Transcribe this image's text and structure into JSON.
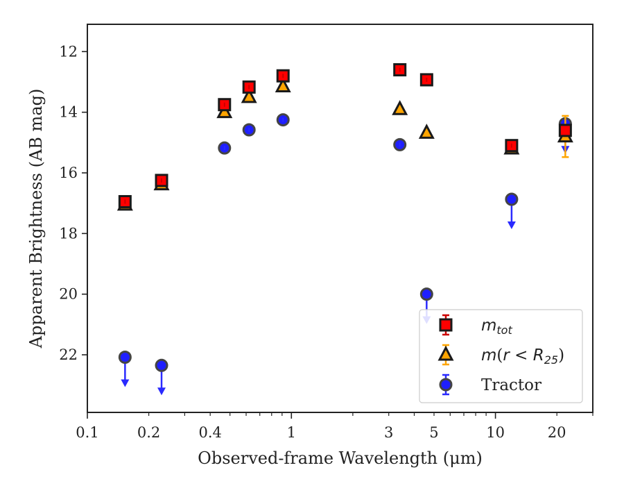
{
  "chart_data": {
    "type": "scatter",
    "xlabel": "Observed-frame Wavelength (μm)",
    "ylabel": "Apparent Brightness (AB mag)",
    "x_scale": "log",
    "xlim": [
      0.1,
      30
    ],
    "ylim": [
      23.9,
      11.1
    ],
    "y_inverted": true,
    "x_ticks": [
      {
        "value": 0.1,
        "label": "0.1"
      },
      {
        "value": 0.2,
        "label": "0.2"
      },
      {
        "value": 0.4,
        "label": "0.4"
      },
      {
        "value": 1,
        "label": "1"
      },
      {
        "value": 3,
        "label": "3"
      },
      {
        "value": 5,
        "label": "5"
      },
      {
        "value": 10,
        "label": "10"
      },
      {
        "value": 20,
        "label": "20"
      }
    ],
    "y_ticks": [
      {
        "value": 12,
        "label": "12"
      },
      {
        "value": 14,
        "label": "14"
      },
      {
        "value": 16,
        "label": "16"
      },
      {
        "value": 18,
        "label": "18"
      },
      {
        "value": 20,
        "label": "20"
      },
      {
        "value": 22,
        "label": "22"
      }
    ],
    "legend_position": "lower-right",
    "series": [
      {
        "name": "m_tot",
        "legend_parts": [
          {
            "text": "m",
            "italic": true
          },
          {
            "text": "tot",
            "sub": true
          }
        ],
        "marker": "square",
        "color": "#ff0000",
        "edge": "#1a1a1a",
        "err_color": "#cc0000",
        "points": [
          {
            "x": 0.153,
            "y": 16.95
          },
          {
            "x": 0.231,
            "y": 16.25
          },
          {
            "x": 0.47,
            "y": 13.75
          },
          {
            "x": 0.62,
            "y": 13.17
          },
          {
            "x": 0.91,
            "y": 12.8
          },
          {
            "x": 3.4,
            "y": 12.6
          },
          {
            "x": 4.6,
            "y": 12.93
          },
          {
            "x": 12,
            "y": 15.1
          },
          {
            "x": 22,
            "y": 14.6,
            "err": 0.15
          }
        ]
      },
      {
        "name": "m(r < R_25)",
        "legend_parts": [
          {
            "text": "m",
            "italic": true
          },
          {
            "text": "(",
            "italic": false
          },
          {
            "text": "r",
            "italic": true
          },
          {
            "text": " < ",
            "italic": false
          },
          {
            "text": "R",
            "italic": true
          },
          {
            "text": "25",
            "sub": true
          },
          {
            "text": ")",
            "italic": false
          }
        ],
        "marker": "triangle",
        "color": "#ffa500",
        "edge": "#1a1a1a",
        "err_color": "#ffa500",
        "points": [
          {
            "x": 0.153,
            "y": 17.05
          },
          {
            "x": 0.231,
            "y": 16.38
          },
          {
            "x": 0.47,
            "y": 14.0
          },
          {
            "x": 0.62,
            "y": 13.5
          },
          {
            "x": 0.91,
            "y": 13.15
          },
          {
            "x": 3.4,
            "y": 13.9
          },
          {
            "x": 4.6,
            "y": 14.68
          },
          {
            "x": 12,
            "y": 15.2
          },
          {
            "x": 22,
            "y": 14.8,
            "err": 0.68
          }
        ]
      },
      {
        "name": "Tractor",
        "legend_parts": [
          {
            "text": "Tractor",
            "italic": false
          }
        ],
        "marker": "circle",
        "color": "#1f1fff",
        "edge": "#444444",
        "err_color": "#2a2aff",
        "points": [
          {
            "x": 0.153,
            "y": 22.08,
            "upper_limit": true
          },
          {
            "x": 0.231,
            "y": 22.35,
            "upper_limit": true
          },
          {
            "x": 0.47,
            "y": 15.18
          },
          {
            "x": 0.62,
            "y": 14.58
          },
          {
            "x": 0.91,
            "y": 14.25
          },
          {
            "x": 3.4,
            "y": 15.07
          },
          {
            "x": 4.6,
            "y": 20.0,
            "upper_limit": true
          },
          {
            "x": 12,
            "y": 16.87,
            "upper_limit": true
          },
          {
            "x": 22,
            "y": 14.38,
            "upper_limit": true
          }
        ]
      }
    ]
  }
}
